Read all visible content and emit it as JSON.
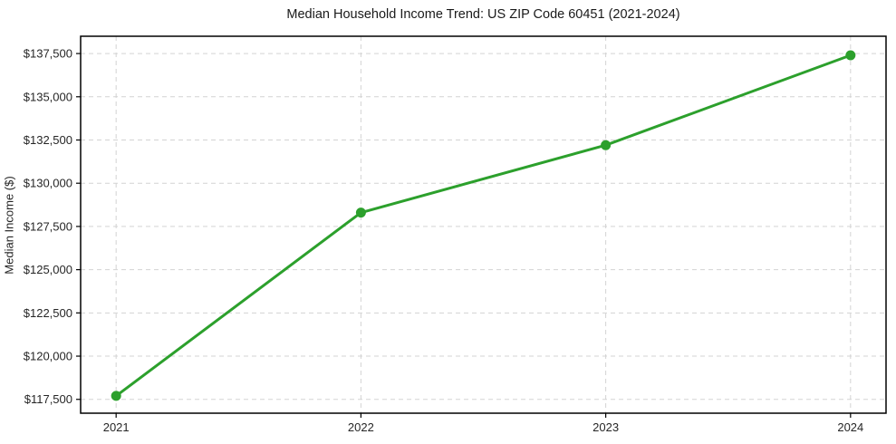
{
  "chart_data": {
    "type": "line",
    "title": "Median Household Income Trend: US ZIP Code 60451 (2021-2024)",
    "xlabel": "",
    "ylabel": "Median Income ($)",
    "x": [
      2021,
      2022,
      2023,
      2024
    ],
    "series": [
      {
        "name": "Median Household Income",
        "values": [
          117700,
          128300,
          132200,
          137400
        ]
      }
    ],
    "xtick_labels": [
      "2021",
      "2022",
      "2023",
      "2024"
    ],
    "ytick_values": [
      117500,
      120000,
      122500,
      125000,
      127500,
      130000,
      132500,
      135000,
      137500
    ],
    "ytick_labels": [
      "$117,500",
      "$120,000",
      "$122,500",
      "$125,000",
      "$127,500",
      "$130,000",
      "$132,500",
      "$135,000",
      "$137,500"
    ],
    "xlim": [
      2020.855,
      2024.145
    ],
    "ylim": [
      116700,
      138500
    ],
    "grid": true,
    "grid_style": "dashed",
    "legend": "none",
    "colors": {
      "line": "#2ca02c",
      "marker": "#2ca02c",
      "grid": "#d3d3d3",
      "spine": "#000000",
      "tick_text": "#262626",
      "title_text": "#1a1a1a",
      "background": "#ffffff"
    }
  }
}
